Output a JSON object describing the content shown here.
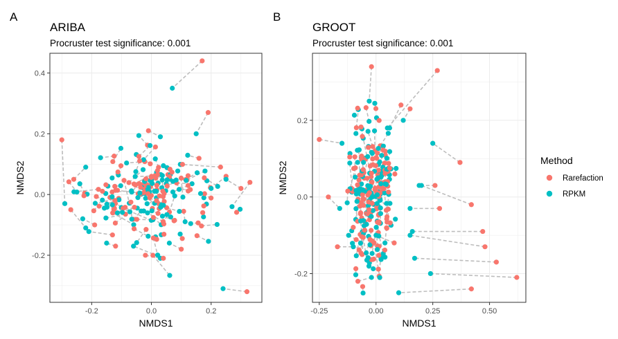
{
  "colors": {
    "Rarefaction": "#f8766d",
    "RPKM": "#00bfc4",
    "link": "#bdbdbd",
    "grid": "#ebebeb",
    "border": "#333333"
  },
  "legend": {
    "title": "Method",
    "items": [
      "Rarefaction",
      "RPKM"
    ]
  },
  "chart_data": [
    {
      "type": "scatter",
      "panel_tag": "A",
      "title": "ARIBA",
      "subtitle": "Procruster test significance: 0.001",
      "xlabel": "NMDS1",
      "ylabel": "NMDS2",
      "xlim": [
        -0.34,
        0.37
      ],
      "ylim": [
        -0.355,
        0.465
      ],
      "xticks": [
        -0.2,
        0.0,
        0.2
      ],
      "xtick_labels": [
        "-0.2",
        "0.0",
        "0.2"
      ],
      "yticks": [
        -0.2,
        0.0,
        0.2,
        0.4
      ],
      "ytick_labels": [
        "-0.2",
        "0.0",
        "0.2",
        "0.4"
      ],
      "cluster": {
        "center": [
          0.0,
          0.0
        ],
        "spread": [
          0.11,
          0.07
        ],
        "n": 120
      },
      "pairs": [
        {
          "rarefaction": [
            0.17,
            0.44
          ],
          "rpkm": [
            0.07,
            0.35
          ]
        },
        {
          "rarefaction": [
            0.19,
            0.27
          ],
          "rpkm": [
            0.15,
            0.2
          ]
        },
        {
          "rarefaction": [
            -0.3,
            0.18
          ],
          "rpkm": [
            -0.29,
            -0.03
          ]
        },
        {
          "rarefaction": [
            0.32,
            -0.32
          ],
          "rpkm": [
            0.24,
            -0.31
          ]
        },
        {
          "rarefaction": [
            0.33,
            0.04
          ],
          "rpkm": [
            0.27,
            -0.04
          ]
        },
        {
          "rarefaction": [
            -0.26,
            0.05
          ],
          "rpkm": [
            -0.22,
            0.09
          ]
        },
        {
          "rarefaction": [
            -0.02,
            -0.2
          ],
          "rpkm": [
            0.03,
            -0.21
          ]
        },
        {
          "rarefaction": [
            0.04,
            -0.21
          ],
          "rpkm": [
            -0.06,
            -0.17
          ]
        },
        {
          "rarefaction": [
            -0.12,
            -0.17
          ],
          "rpkm": [
            -0.15,
            -0.16
          ]
        },
        {
          "rarefaction": [
            0.25,
            0.06
          ],
          "rpkm": [
            0.2,
            0.02
          ]
        },
        {
          "rarefaction": [
            -0.27,
            -0.05
          ],
          "rpkm": [
            -0.22,
            -0.11
          ]
        },
        {
          "rarefaction": [
            -0.01,
            0.21
          ],
          "rpkm": [
            0.03,
            0.19
          ]
        },
        {
          "rarefaction": [
            0.3,
            0.02
          ],
          "rpkm": [
            0.25,
            0.05
          ]
        },
        {
          "rarefaction": [
            -0.19,
            -0.1
          ],
          "rpkm": [
            -0.23,
            -0.08
          ]
        },
        {
          "rarefaction": [
            0.1,
            -0.18
          ],
          "rpkm": [
            0.06,
            -0.16
          ]
        }
      ]
    },
    {
      "type": "scatter",
      "panel_tag": "B",
      "title": "GROOT",
      "subtitle": "Procruster test significance: 0.001",
      "xlabel": "NMDS1",
      "ylabel": "NMDS2",
      "xlim": [
        -0.28,
        0.66
      ],
      "ylim": [
        -0.275,
        0.375
      ],
      "xticks": [
        -0.25,
        0.0,
        0.25,
        0.5
      ],
      "xtick_labels": [
        "-0.25",
        "0.00",
        "0.25",
        "0.50"
      ],
      "yticks": [
        -0.2,
        0.0,
        0.2
      ],
      "ytick_labels": [
        "-0.2",
        "0.0",
        "0.2"
      ],
      "cluster": {
        "center": [
          -0.02,
          0.0
        ],
        "spread": [
          0.045,
          0.1
        ],
        "n": 140
      },
      "pairs": [
        {
          "rarefaction": [
            0.62,
            -0.21
          ],
          "rpkm": [
            0.24,
            -0.2
          ]
        },
        {
          "rarefaction": [
            0.53,
            -0.17
          ],
          "rpkm": [
            0.17,
            -0.16
          ]
        },
        {
          "rarefaction": [
            0.48,
            -0.13
          ],
          "rpkm": [
            0.15,
            -0.1
          ]
        },
        {
          "rarefaction": [
            0.42,
            -0.24
          ],
          "rpkm": [
            0.1,
            -0.25
          ]
        },
        {
          "rarefaction": [
            0.27,
            0.33
          ],
          "rpkm": [
            0.05,
            0.18
          ]
        },
        {
          "rarefaction": [
            -0.25,
            0.15
          ],
          "rpkm": [
            -0.15,
            0.14
          ]
        },
        {
          "rarefaction": [
            0.37,
            0.09
          ],
          "rpkm": [
            0.25,
            0.14
          ]
        },
        {
          "rarefaction": [
            0.42,
            -0.02
          ],
          "rpkm": [
            0.2,
            0.03
          ]
        },
        {
          "rarefaction": [
            0.47,
            -0.09
          ],
          "rpkm": [
            0.16,
            -0.09
          ]
        },
        {
          "rarefaction": [
            -0.02,
            0.34
          ],
          "rpkm": [
            -0.03,
            0.25
          ]
        },
        {
          "rarefaction": [
            0.11,
            0.24
          ],
          "rpkm": [
            0.06,
            0.18
          ]
        },
        {
          "rarefaction": [
            0.26,
            0.03
          ],
          "rpkm": [
            0.19,
            0.03
          ]
        },
        {
          "rarefaction": [
            -0.21,
            0.0
          ],
          "rpkm": [
            -0.16,
            -0.03
          ]
        },
        {
          "rarefaction": [
            -0.17,
            -0.13
          ],
          "rpkm": [
            -0.1,
            -0.13
          ]
        },
        {
          "rarefaction": [
            -0.08,
            -0.22
          ],
          "rpkm": [
            -0.02,
            -0.21
          ]
        },
        {
          "rarefaction": [
            0.15,
            0.23
          ],
          "rpkm": [
            0.12,
            0.2
          ]
        },
        {
          "rarefaction": [
            0.28,
            -0.03
          ],
          "rpkm": [
            0.15,
            -0.03
          ]
        },
        {
          "rarefaction": [
            0.08,
            -0.12
          ],
          "rpkm": [
            0.0,
            -0.1
          ]
        }
      ]
    }
  ]
}
